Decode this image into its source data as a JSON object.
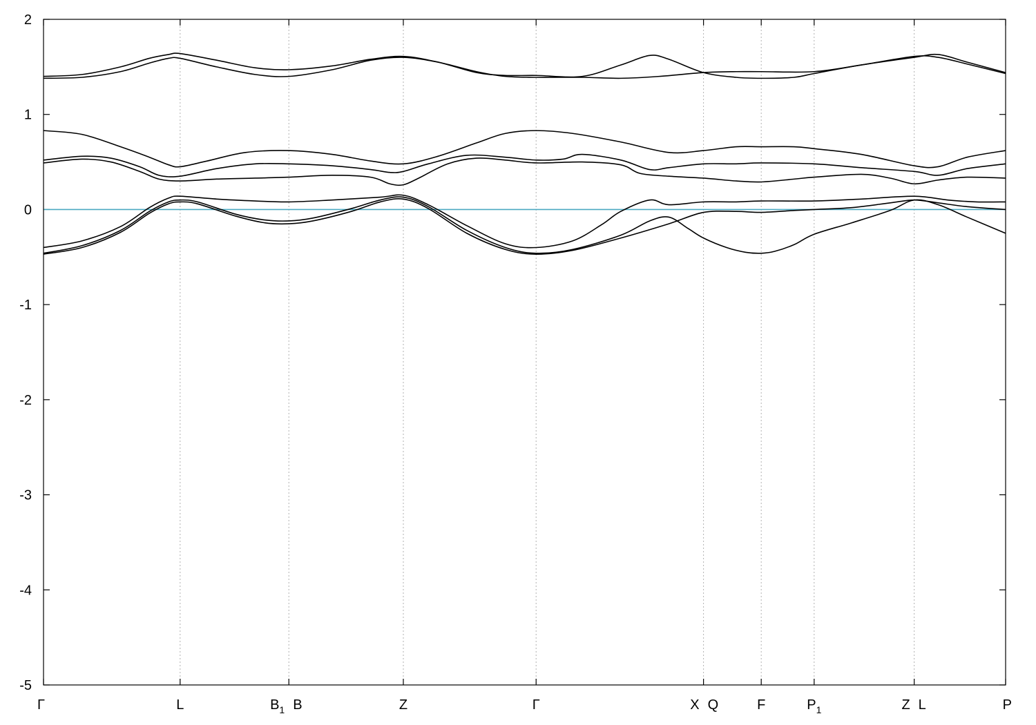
{
  "chart_data": {
    "type": "line",
    "title": "",
    "xlabel": "",
    "ylabel": "",
    "ylim": [
      -5,
      2
    ],
    "yticks": [
      2,
      1,
      0,
      -1,
      -2,
      -3,
      -4,
      -5
    ],
    "grid": false,
    "kpoints": [
      {
        "label": "Γ",
        "sub": "",
        "x": 0
      },
      {
        "label": "L",
        "sub": "",
        "x": 1.42
      },
      {
        "label": "B",
        "sub": "1",
        "x": 2.55
      },
      {
        "label": "B",
        "sub": "",
        "x": 2.55
      },
      {
        "label": "Z",
        "sub": "",
        "x": 3.74
      },
      {
        "label": "Γ",
        "sub": "",
        "x": 5.12
      },
      {
        "label": "X",
        "sub": "",
        "x": 6.86
      },
      {
        "label": "Q",
        "sub": "",
        "x": 6.86
      },
      {
        "label": "F",
        "sub": "",
        "x": 7.46
      },
      {
        "label": "P",
        "sub": "1",
        "x": 8.01
      },
      {
        "label": "Z",
        "sub": "",
        "x": 9.05
      },
      {
        "label": "L",
        "sub": "",
        "x": 9.05
      },
      {
        "label": "P",
        "sub": "",
        "x": 10.0
      }
    ],
    "fermi_level": {
      "y": 0,
      "color": "#4aa8c0"
    },
    "line_color": "#000000",
    "series": [
      {
        "values": [
          [
            0,
            -0.47
          ],
          [
            0.4,
            -0.4
          ],
          [
            0.8,
            -0.24
          ],
          [
            1.1,
            -0.04
          ],
          [
            1.3,
            0.06
          ],
          [
            1.42,
            0.08
          ],
          [
            1.6,
            0.06
          ],
          [
            2.0,
            -0.07
          ],
          [
            2.3,
            -0.14
          ],
          [
            2.55,
            -0.15
          ],
          [
            2.8,
            -0.12
          ],
          [
            3.2,
            -0.02
          ],
          [
            3.5,
            0.08
          ],
          [
            3.74,
            0.11
          ],
          [
            4.0,
            0.01
          ],
          [
            4.4,
            -0.25
          ],
          [
            4.8,
            -0.42
          ],
          [
            5.12,
            -0.47
          ],
          [
            5.5,
            -0.43
          ],
          [
            6.0,
            -0.3
          ],
          [
            6.5,
            -0.15
          ],
          [
            6.86,
            -0.03
          ],
          [
            7.2,
            -0.02
          ],
          [
            7.46,
            -0.03
          ],
          [
            7.8,
            -0.01
          ],
          [
            8.01,
            0.0
          ],
          [
            8.4,
            0.02
          ],
          [
            8.8,
            0.07
          ],
          [
            9.05,
            0.1
          ],
          [
            9.3,
            0.07
          ],
          [
            9.6,
            0.03
          ],
          [
            10.0,
            0.0
          ]
        ]
      },
      {
        "values": [
          [
            0,
            -0.46
          ],
          [
            0.4,
            -0.38
          ],
          [
            0.8,
            -0.22
          ],
          [
            1.1,
            -0.02
          ],
          [
            1.3,
            0.08
          ],
          [
            1.42,
            0.1
          ],
          [
            1.6,
            0.08
          ],
          [
            2.0,
            -0.05
          ],
          [
            2.3,
            -0.11
          ],
          [
            2.55,
            -0.12
          ],
          [
            2.8,
            -0.09
          ],
          [
            3.2,
            0.01
          ],
          [
            3.5,
            0.1
          ],
          [
            3.74,
            0.13
          ],
          [
            4.0,
            0.03
          ],
          [
            4.4,
            -0.22
          ],
          [
            4.8,
            -0.4
          ],
          [
            5.12,
            -0.46
          ],
          [
            5.5,
            -0.42
          ],
          [
            6.0,
            -0.27
          ],
          [
            6.3,
            -0.12
          ],
          [
            6.5,
            -0.08
          ],
          [
            6.7,
            -0.2
          ],
          [
            6.86,
            -0.3
          ],
          [
            7.1,
            -0.4
          ],
          [
            7.3,
            -0.45
          ],
          [
            7.46,
            -0.46
          ],
          [
            7.6,
            -0.44
          ],
          [
            7.8,
            -0.37
          ],
          [
            8.01,
            -0.26
          ],
          [
            8.4,
            -0.14
          ],
          [
            8.8,
            -0.01
          ],
          [
            9.05,
            0.1
          ],
          [
            9.3,
            0.05
          ],
          [
            9.6,
            -0.08
          ],
          [
            10.0,
            -0.25
          ]
        ]
      },
      {
        "values": [
          [
            0,
            -0.4
          ],
          [
            0.4,
            -0.33
          ],
          [
            0.8,
            -0.18
          ],
          [
            1.1,
            0.02
          ],
          [
            1.3,
            0.12
          ],
          [
            1.42,
            0.14
          ],
          [
            1.8,
            0.11
          ],
          [
            2.2,
            0.09
          ],
          [
            2.55,
            0.08
          ],
          [
            3.0,
            0.1
          ],
          [
            3.5,
            0.13
          ],
          [
            3.74,
            0.15
          ],
          [
            4.0,
            0.05
          ],
          [
            4.4,
            -0.17
          ],
          [
            4.8,
            -0.36
          ],
          [
            5.12,
            -0.4
          ],
          [
            5.5,
            -0.33
          ],
          [
            5.8,
            -0.16
          ],
          [
            6.0,
            -0.02
          ],
          [
            6.3,
            0.1
          ],
          [
            6.5,
            0.05
          ],
          [
            6.86,
            0.08
          ],
          [
            7.2,
            0.08
          ],
          [
            7.46,
            0.09
          ],
          [
            8.01,
            0.09
          ],
          [
            8.5,
            0.11
          ],
          [
            9.05,
            0.14
          ],
          [
            9.4,
            0.1
          ],
          [
            9.7,
            0.08
          ],
          [
            10.0,
            0.08
          ]
        ]
      },
      {
        "values": [
          [
            0,
            0.49
          ],
          [
            0.4,
            0.53
          ],
          [
            0.7,
            0.5
          ],
          [
            1.0,
            0.4
          ],
          [
            1.2,
            0.32
          ],
          [
            1.42,
            0.3
          ],
          [
            1.8,
            0.32
          ],
          [
            2.2,
            0.33
          ],
          [
            2.55,
            0.34
          ],
          [
            3.0,
            0.36
          ],
          [
            3.4,
            0.34
          ],
          [
            3.6,
            0.27
          ],
          [
            3.74,
            0.26
          ],
          [
            3.9,
            0.33
          ],
          [
            4.2,
            0.48
          ],
          [
            4.5,
            0.54
          ],
          [
            4.8,
            0.52
          ],
          [
            5.12,
            0.49
          ],
          [
            5.6,
            0.5
          ],
          [
            6.0,
            0.47
          ],
          [
            6.2,
            0.38
          ],
          [
            6.5,
            0.35
          ],
          [
            6.86,
            0.33
          ],
          [
            7.2,
            0.3
          ],
          [
            7.46,
            0.29
          ],
          [
            7.8,
            0.32
          ],
          [
            8.01,
            0.34
          ],
          [
            8.5,
            0.37
          ],
          [
            8.8,
            0.33
          ],
          [
            9.05,
            0.27
          ],
          [
            9.3,
            0.31
          ],
          [
            9.6,
            0.34
          ],
          [
            10.0,
            0.33
          ]
        ]
      },
      {
        "values": [
          [
            0,
            0.52
          ],
          [
            0.4,
            0.56
          ],
          [
            0.7,
            0.54
          ],
          [
            1.0,
            0.45
          ],
          [
            1.2,
            0.36
          ],
          [
            1.42,
            0.35
          ],
          [
            1.8,
            0.43
          ],
          [
            2.2,
            0.48
          ],
          [
            2.55,
            0.48
          ],
          [
            3.0,
            0.46
          ],
          [
            3.4,
            0.42
          ],
          [
            3.6,
            0.39
          ],
          [
            3.74,
            0.4
          ],
          [
            4.0,
            0.48
          ],
          [
            4.4,
            0.57
          ],
          [
            4.8,
            0.55
          ],
          [
            5.12,
            0.52
          ],
          [
            5.4,
            0.53
          ],
          [
            5.6,
            0.58
          ],
          [
            6.0,
            0.52
          ],
          [
            6.3,
            0.42
          ],
          [
            6.5,
            0.44
          ],
          [
            6.86,
            0.48
          ],
          [
            7.2,
            0.48
          ],
          [
            7.46,
            0.49
          ],
          [
            8.01,
            0.48
          ],
          [
            8.5,
            0.44
          ],
          [
            9.05,
            0.4
          ],
          [
            9.3,
            0.36
          ],
          [
            9.6,
            0.43
          ],
          [
            10.0,
            0.48
          ]
        ]
      },
      {
        "values": [
          [
            0,
            0.83
          ],
          [
            0.4,
            0.79
          ],
          [
            0.8,
            0.66
          ],
          [
            1.1,
            0.55
          ],
          [
            1.3,
            0.47
          ],
          [
            1.42,
            0.45
          ],
          [
            1.7,
            0.51
          ],
          [
            2.1,
            0.6
          ],
          [
            2.55,
            0.62
          ],
          [
            3.0,
            0.58
          ],
          [
            3.4,
            0.51
          ],
          [
            3.74,
            0.48
          ],
          [
            4.1,
            0.56
          ],
          [
            4.5,
            0.7
          ],
          [
            4.8,
            0.8
          ],
          [
            5.12,
            0.83
          ],
          [
            5.5,
            0.8
          ],
          [
            6.0,
            0.71
          ],
          [
            6.5,
            0.6
          ],
          [
            6.86,
            0.62
          ],
          [
            7.2,
            0.66
          ],
          [
            7.46,
            0.66
          ],
          [
            7.8,
            0.66
          ],
          [
            8.01,
            0.64
          ],
          [
            8.5,
            0.58
          ],
          [
            9.05,
            0.46
          ],
          [
            9.3,
            0.45
          ],
          [
            9.6,
            0.55
          ],
          [
            10.0,
            0.62
          ]
        ]
      },
      {
        "values": [
          [
            0,
            1.38
          ],
          [
            0.4,
            1.39
          ],
          [
            0.8,
            1.45
          ],
          [
            1.1,
            1.54
          ],
          [
            1.3,
            1.59
          ],
          [
            1.42,
            1.59
          ],
          [
            1.8,
            1.5
          ],
          [
            2.2,
            1.42
          ],
          [
            2.55,
            1.4
          ],
          [
            3.0,
            1.47
          ],
          [
            3.4,
            1.57
          ],
          [
            3.74,
            1.6
          ],
          [
            4.1,
            1.55
          ],
          [
            4.5,
            1.45
          ],
          [
            4.8,
            1.4
          ],
          [
            5.12,
            1.39
          ],
          [
            5.6,
            1.39
          ],
          [
            6.0,
            1.38
          ],
          [
            6.4,
            1.4
          ],
          [
            6.86,
            1.44
          ],
          [
            7.2,
            1.45
          ],
          [
            7.46,
            1.45
          ],
          [
            8.01,
            1.45
          ],
          [
            8.5,
            1.52
          ],
          [
            9.05,
            1.61
          ],
          [
            9.3,
            1.6
          ],
          [
            9.6,
            1.53
          ],
          [
            10.0,
            1.43
          ]
        ]
      },
      {
        "values": [
          [
            0,
            1.4
          ],
          [
            0.4,
            1.42
          ],
          [
            0.8,
            1.5
          ],
          [
            1.1,
            1.59
          ],
          [
            1.3,
            1.63
          ],
          [
            1.42,
            1.64
          ],
          [
            1.8,
            1.57
          ],
          [
            2.2,
            1.49
          ],
          [
            2.55,
            1.47
          ],
          [
            3.0,
            1.51
          ],
          [
            3.4,
            1.58
          ],
          [
            3.74,
            1.61
          ],
          [
            4.1,
            1.55
          ],
          [
            4.5,
            1.44
          ],
          [
            4.8,
            1.41
          ],
          [
            5.12,
            1.41
          ],
          [
            5.6,
            1.4
          ],
          [
            6.0,
            1.52
          ],
          [
            6.3,
            1.62
          ],
          [
            6.5,
            1.58
          ],
          [
            6.86,
            1.44
          ],
          [
            7.2,
            1.39
          ],
          [
            7.46,
            1.38
          ],
          [
            7.8,
            1.39
          ],
          [
            8.01,
            1.43
          ],
          [
            8.5,
            1.52
          ],
          [
            9.05,
            1.6
          ],
          [
            9.3,
            1.63
          ],
          [
            9.6,
            1.55
          ],
          [
            10.0,
            1.44
          ]
        ]
      }
    ]
  }
}
